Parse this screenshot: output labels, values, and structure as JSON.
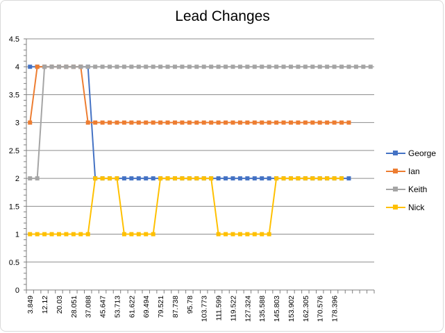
{
  "chart_data": {
    "type": "line",
    "title": "Lead Changes",
    "xlabel": "",
    "ylabel": "",
    "ylim": [
      0,
      4.5
    ],
    "yticks": [
      "0",
      "0.5",
      "1",
      "1.5",
      "2",
      "2.5",
      "3",
      "3.5",
      "4",
      "4.5"
    ],
    "x_tick_labels": [
      "3.849",
      "12.12",
      "20.03",
      "28.051",
      "37.088",
      "45.647",
      "53.713",
      "61.622",
      "69.494",
      "79.521",
      "87.738",
      "95.78",
      "103.773",
      "111.599",
      "119.522",
      "127.324",
      "135.588",
      "145.803",
      "153.902",
      "162.305",
      "170.576",
      "178.396"
    ],
    "category_count": 48,
    "grid": true,
    "legend_position": "right",
    "series": [
      {
        "name": "George",
        "color": "#4472C4",
        "values": [
          4,
          4,
          4,
          4,
          4,
          4,
          4,
          4,
          4,
          2,
          2,
          2,
          2,
          2,
          2,
          2,
          2,
          2,
          2,
          2,
          2,
          2,
          2,
          2,
          2,
          2,
          2,
          2,
          2,
          2,
          2,
          2,
          2,
          2,
          2,
          2,
          2,
          2,
          2,
          2,
          2,
          2,
          2,
          2,
          2
        ]
      },
      {
        "name": "Ian",
        "color": "#ED7D31",
        "values": [
          3,
          4,
          4,
          4,
          4,
          4,
          4,
          4,
          3,
          3,
          3,
          3,
          3,
          3,
          3,
          3,
          3,
          3,
          3,
          3,
          3,
          3,
          3,
          3,
          3,
          3,
          3,
          3,
          3,
          3,
          3,
          3,
          3,
          3,
          3,
          3,
          3,
          3,
          3,
          3,
          3,
          3,
          3,
          3,
          3
        ]
      },
      {
        "name": "Keith",
        "color": "#A5A5A5",
        "values": [
          2,
          2,
          4,
          4,
          4,
          4,
          4,
          4,
          4,
          4,
          4,
          4,
          4,
          4,
          4,
          4,
          4,
          4,
          4,
          4,
          4,
          4,
          4,
          4,
          4,
          4,
          4,
          4,
          4,
          4,
          4,
          4,
          4,
          4,
          4,
          4,
          4,
          4,
          4,
          4,
          4,
          4,
          4,
          4,
          4,
          4,
          4,
          4
        ]
      },
      {
        "name": "Nick",
        "color": "#FFC000",
        "values": [
          1,
          1,
          1,
          1,
          1,
          1,
          1,
          1,
          1,
          2,
          2,
          2,
          2,
          1,
          1,
          1,
          1,
          1,
          2,
          2,
          2,
          2,
          2,
          2,
          2,
          2,
          1,
          1,
          1,
          1,
          1,
          1,
          1,
          1,
          2,
          2,
          2,
          2,
          2,
          2,
          2,
          2,
          2,
          2
        ]
      }
    ]
  }
}
